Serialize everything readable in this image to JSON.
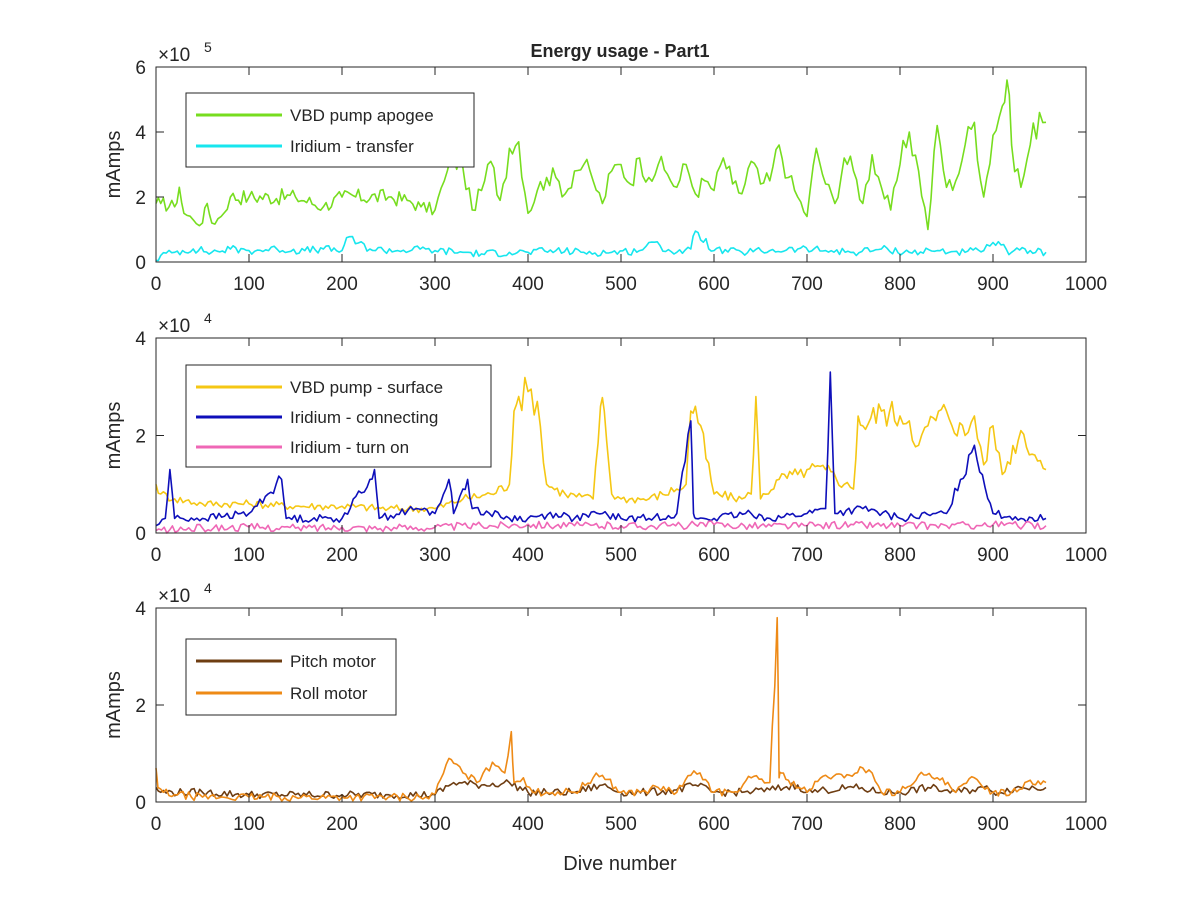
{
  "title": "Energy usage - Part1",
  "xlabel": "Dive number",
  "chart_data": [
    {
      "type": "line",
      "title": "Energy usage - Part1",
      "xlabel": "",
      "ylabel": "mAmps",
      "exponent_base": "×10",
      "exponent_power": "5",
      "xlim": [
        0,
        1000
      ],
      "ylim": [
        0,
        6
      ],
      "xticks": [
        "0",
        "100",
        "200",
        "300",
        "400",
        "500",
        "600",
        "700",
        "800",
        "900",
        "1000"
      ],
      "yticks": [
        "0",
        "2",
        "4",
        "6"
      ],
      "legend_position": "top-left",
      "series": [
        {
          "name": "VBD pump apogee",
          "color": "#77dd1f",
          "x": [
            0,
            5,
            20,
            25,
            30,
            40,
            50,
            55,
            60,
            70,
            80,
            100,
            150,
            180,
            200,
            250,
            270,
            285,
            300,
            310,
            320,
            330,
            340,
            350,
            360,
            370,
            380,
            390,
            400,
            410,
            420,
            430,
            440,
            450,
            460,
            470,
            480,
            490,
            500,
            510,
            520,
            530,
            540,
            550,
            560,
            570,
            580,
            590,
            600,
            610,
            620,
            630,
            640,
            650,
            660,
            670,
            680,
            690,
            700,
            710,
            720,
            730,
            740,
            750,
            760,
            770,
            780,
            790,
            800,
            810,
            820,
            830,
            840,
            850,
            860,
            870,
            880,
            890,
            900,
            910,
            915,
            920,
            930,
            940,
            950,
            957
          ],
          "values": [
            1.8,
            1.8,
            1.7,
            2.3,
            1.5,
            1.3,
            1.2,
            1.8,
            1.2,
            1.4,
            2.0,
            2.0,
            2.0,
            1.7,
            2.0,
            2.0,
            1.9,
            1.7,
            1.6,
            2.5,
            3.2,
            2.9,
            1.6,
            2.2,
            3.1,
            1.9,
            3.5,
            3.7,
            1.5,
            2.2,
            2.6,
            2.6,
            2.1,
            2.8,
            3.0,
            2.5,
            1.8,
            2.8,
            3.0,
            2.4,
            3.2,
            2.6,
            3.0,
            2.7,
            2.3,
            3.0,
            2.1,
            2.5,
            2.2,
            3.2,
            2.4,
            2.1,
            3.1,
            2.4,
            2.5,
            3.6,
            2.6,
            2.0,
            1.4,
            3.5,
            2.4,
            1.8,
            3.2,
            2.8,
            1.8,
            3.3,
            2.3,
            1.6,
            3.0,
            4.0,
            2.8,
            1.0,
            4.2,
            2.3,
            2.5,
            3.6,
            4.3,
            2.0,
            3.9,
            4.8,
            5.6,
            3.6,
            2.3,
            3.6,
            4.6,
            4.3
          ]
        },
        {
          "name": "Iridium - transfer",
          "color": "#17e6ee",
          "x": [
            0,
            5,
            20,
            40,
            60,
            80,
            100,
            130,
            160,
            180,
            200,
            205,
            230,
            260,
            290,
            300,
            330,
            350,
            380,
            400,
            430,
            460,
            490,
            520,
            530,
            560,
            575,
            580,
            600,
            630,
            660,
            690,
            720,
            750,
            780,
            810,
            840,
            870,
            890,
            900,
            920,
            940,
            957
          ],
          "values": [
            0.05,
            0.2,
            0.3,
            0.4,
            0.3,
            0.4,
            0.35,
            0.4,
            0.35,
            0.4,
            0.35,
            0.75,
            0.4,
            0.35,
            0.4,
            0.35,
            0.3,
            0.25,
            0.3,
            0.3,
            0.35,
            0.3,
            0.3,
            0.35,
            0.6,
            0.3,
            0.4,
            0.95,
            0.35,
            0.3,
            0.35,
            0.4,
            0.35,
            0.3,
            0.4,
            0.3,
            0.35,
            0.3,
            0.35,
            0.6,
            0.3,
            0.35,
            0.3
          ]
        }
      ]
    },
    {
      "type": "line",
      "xlabel": "",
      "ylabel": "mAmps",
      "exponent_base": "×10",
      "exponent_power": "4",
      "xlim": [
        0,
        1000
      ],
      "ylim": [
        0,
        4
      ],
      "xticks": [
        "0",
        "100",
        "200",
        "300",
        "400",
        "500",
        "600",
        "700",
        "800",
        "900",
        "1000"
      ],
      "yticks": [
        "0",
        "2",
        "4"
      ],
      "legend_position": "top-left",
      "series": [
        {
          "name": "VBD pump - surface",
          "color": "#f5c714",
          "x": [
            0,
            5,
            20,
            50,
            100,
            150,
            200,
            250,
            300,
            330,
            360,
            380,
            385,
            390,
            400,
            410,
            420,
            440,
            470,
            478,
            482,
            490,
            500,
            530,
            560,
            570,
            575,
            580,
            600,
            630,
            640,
            645,
            650,
            670,
            690,
            700,
            720,
            740,
            750,
            755,
            760,
            780,
            800,
            810,
            820,
            830,
            850,
            870,
            880,
            890,
            900,
            910,
            930,
            945,
            957
          ],
          "values": [
            1.0,
            0.8,
            0.7,
            0.6,
            0.6,
            0.55,
            0.55,
            0.5,
            0.5,
            0.7,
            0.8,
            1.0,
            2.5,
            2.8,
            2.9,
            2.7,
            1.0,
            0.8,
            0.7,
            2.6,
            2.5,
            0.8,
            0.7,
            0.7,
            0.9,
            1.0,
            2.5,
            2.6,
            0.8,
            0.7,
            0.8,
            2.8,
            0.7,
            1.1,
            1.2,
            1.3,
            1.3,
            1.0,
            0.9,
            2.4,
            2.2,
            2.5,
            2.4,
            2.3,
            1.8,
            2.2,
            2.5,
            2.0,
            2.4,
            1.4,
            2.2,
            1.2,
            2.1,
            1.6,
            1.3
          ]
        },
        {
          "name": "Iridium - connecting",
          "color": "#0e0fba",
          "x": [
            0,
            10,
            15,
            20,
            50,
            100,
            135,
            140,
            200,
            230,
            235,
            240,
            280,
            300,
            315,
            320,
            330,
            335,
            340,
            380,
            400,
            430,
            450,
            480,
            500,
            530,
            560,
            575,
            578,
            580,
            600,
            640,
            660,
            700,
            720,
            725,
            730,
            760,
            800,
            850,
            880,
            900,
            930,
            957
          ],
          "values": [
            0.15,
            0.3,
            1.3,
            0.3,
            0.3,
            0.4,
            1.1,
            0.3,
            0.3,
            1.1,
            1.3,
            0.3,
            0.5,
            0.4,
            1.1,
            0.4,
            0.9,
            1.1,
            0.5,
            0.3,
            0.3,
            0.4,
            0.3,
            0.4,
            0.3,
            0.3,
            0.4,
            2.3,
            0.4,
            0.3,
            0.3,
            0.4,
            0.3,
            0.4,
            0.5,
            3.3,
            0.4,
            0.5,
            0.3,
            0.4,
            1.8,
            0.4,
            0.3,
            0.3
          ]
        },
        {
          "name": "Iridium - turn on",
          "color": "#ef67b6",
          "x": [
            0,
            50,
            100,
            150,
            200,
            250,
            300,
            350,
            400,
            450,
            500,
            550,
            600,
            650,
            700,
            750,
            800,
            850,
            900,
            957
          ],
          "values": [
            0.05,
            0.1,
            0.12,
            0.1,
            0.12,
            0.1,
            0.12,
            0.15,
            0.18,
            0.15,
            0.15,
            0.15,
            0.17,
            0.15,
            0.15,
            0.17,
            0.15,
            0.15,
            0.17,
            0.15
          ]
        }
      ]
    },
    {
      "type": "line",
      "xlabel": "Dive number",
      "ylabel": "mAmps",
      "exponent_base": "×10",
      "exponent_power": "4",
      "xlim": [
        0,
        1000
      ],
      "ylim": [
        0,
        4
      ],
      "xticks": [
        "0",
        "100",
        "200",
        "300",
        "400",
        "500",
        "600",
        "700",
        "800",
        "900",
        "1000"
      ],
      "yticks": [
        "0",
        "2",
        "4"
      ],
      "legend_position": "top-left",
      "series": [
        {
          "name": "Pitch motor",
          "color": "#6e3d12",
          "x": [
            0,
            5,
            50,
            100,
            150,
            200,
            250,
            300,
            320,
            350,
            380,
            400,
            420,
            450,
            480,
            500,
            530,
            560,
            580,
            600,
            630,
            660,
            690,
            700,
            720,
            750,
            780,
            800,
            830,
            860,
            890,
            900,
            930,
            957
          ],
          "values": [
            0.3,
            0.2,
            0.2,
            0.15,
            0.15,
            0.15,
            0.15,
            0.15,
            0.4,
            0.35,
            0.4,
            0.2,
            0.2,
            0.2,
            0.35,
            0.2,
            0.2,
            0.25,
            0.35,
            0.2,
            0.2,
            0.25,
            0.35,
            0.2,
            0.25,
            0.3,
            0.2,
            0.2,
            0.3,
            0.2,
            0.3,
            0.2,
            0.3,
            0.3
          ]
        },
        {
          "name": "Roll motor",
          "color": "#ee8a16",
          "x": [
            0,
            2,
            8,
            20,
            50,
            100,
            150,
            200,
            250,
            290,
            300,
            315,
            320,
            330,
            345,
            355,
            365,
            375,
            382,
            385,
            395,
            405,
            420,
            450,
            470,
            480,
            500,
            520,
            540,
            560,
            575,
            585,
            600,
            620,
            640,
            660,
            668,
            670,
            672,
            680,
            700,
            720,
            740,
            760,
            770,
            780,
            800,
            820,
            840,
            860,
            880,
            900,
            920,
            940,
            957
          ],
          "values": [
            0.7,
            0.3,
            0.2,
            0.15,
            0.1,
            0.1,
            0.1,
            0.1,
            0.1,
            0.1,
            0.15,
            0.9,
            0.8,
            0.6,
            0.4,
            0.7,
            0.75,
            0.6,
            1.45,
            0.4,
            0.5,
            0.2,
            0.2,
            0.2,
            0.5,
            0.55,
            0.2,
            0.2,
            0.3,
            0.2,
            0.55,
            0.6,
            0.2,
            0.2,
            0.5,
            0.4,
            3.8,
            0.5,
            0.6,
            0.45,
            0.2,
            0.55,
            0.5,
            0.7,
            0.6,
            0.2,
            0.2,
            0.55,
            0.5,
            0.2,
            0.5,
            0.2,
            0.2,
            0.45,
            0.4
          ]
        }
      ]
    }
  ]
}
